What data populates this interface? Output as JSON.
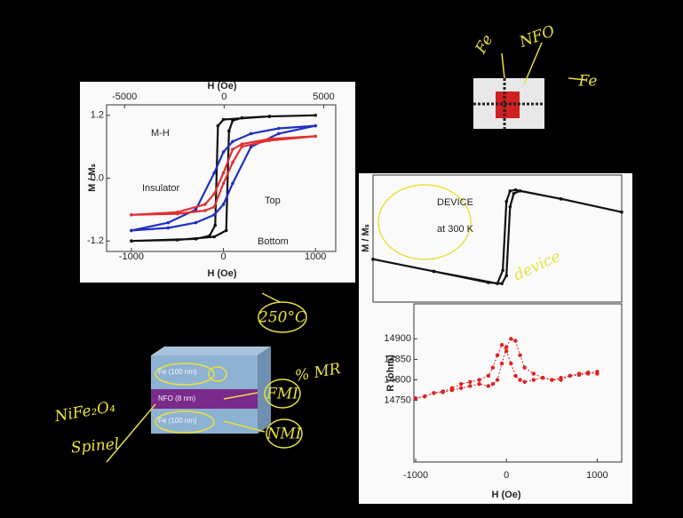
{
  "chart_data": [
    {
      "type": "line",
      "x2label": "H (Oe)",
      "xlabel": "H (Oe)",
      "ylabel": "M / Mₛ",
      "xlim": [
        -1270,
        1220
      ],
      "xticks": [
        -1000,
        0,
        1000
      ],
      "x2lim": [
        -5900,
        5600
      ],
      "x2ticks": [
        -5000,
        0,
        5000
      ],
      "ylim": [
        -1.4,
        1.4
      ],
      "yticks": [
        1.2,
        {
          "value": 0,
          "label": "0.0"
        },
        -1.2
      ],
      "annotations": [
        "M-H",
        "Insulator",
        "Top",
        "Bottom"
      ],
      "series": [
        {
          "color": "#111111",
          "x": [
            -1000,
            -500,
            -100,
            30,
            60,
            100,
            200,
            500,
            1000,
            500,
            0,
            -60,
            -90,
            -150,
            -300,
            -1000
          ],
          "values": [
            -1.2,
            -1.18,
            -1.12,
            -1.0,
            0.9,
            1.1,
            1.15,
            1.18,
            1.2,
            1.18,
            1.12,
            1.0,
            -0.9,
            -1.1,
            -1.16,
            -1.2
          ]
        },
        {
          "color": "#2030c0",
          "x": [
            -1000,
            -600,
            -300,
            -100,
            0,
            100,
            300,
            600,
            1000,
            600,
            300,
            100,
            0,
            -100,
            -300,
            -600,
            -1000
          ],
          "values": [
            -1.0,
            -0.95,
            -0.85,
            -0.7,
            -0.5,
            -0.1,
            0.6,
            0.85,
            1.0,
            0.95,
            0.85,
            0.7,
            0.5,
            0.1,
            -0.6,
            -0.85,
            -1.0
          ]
        },
        {
          "color": "#e03030",
          "x": [
            -1000,
            -500,
            -200,
            -100,
            0,
            100,
            200,
            500,
            1000,
            500,
            200,
            100,
            0,
            -100,
            -200,
            -500,
            -1000
          ],
          "values": [
            -0.7,
            -0.65,
            -0.5,
            -0.3,
            0.1,
            0.55,
            0.65,
            0.75,
            0.8,
            0.72,
            0.6,
            0.3,
            -0.1,
            -0.55,
            -0.62,
            -0.68,
            -0.7
          ]
        }
      ]
    },
    {
      "type": "line",
      "ylabel": "M / Mₛ",
      "xlim": [
        -1470,
        1270
      ],
      "ylim": [
        -1.2,
        1.2
      ],
      "annotations": [
        "DEVICE",
        "at 300 K"
      ],
      "series": [
        {
          "color": "#111111",
          "x": [
            -1470,
            -800,
            -200,
            -50,
            0,
            40,
            80,
            150,
            600,
            1270,
            600,
            100,
            40,
            0,
            -40,
            -100,
            -800,
            -1470
          ],
          "values": [
            -0.39,
            -0.62,
            -0.83,
            -0.85,
            -0.7,
            0.6,
            0.85,
            0.9,
            0.75,
            0.5,
            0.75,
            0.92,
            0.9,
            0.7,
            -0.6,
            -0.85,
            -0.62,
            -0.39
          ]
        }
      ]
    },
    {
      "type": "scatter",
      "xlabel": "H (Oe)",
      "ylabel": "R (ohm)",
      "xlim": [
        -1020,
        1270
      ],
      "xticks": [
        -1000,
        0,
        1000
      ],
      "ylim": [
        14600,
        14985
      ],
      "yticks": [
        14750,
        14800,
        14850,
        14900
      ],
      "series": [
        {
          "color": "#e02020",
          "x": [
            -1000,
            -900,
            -800,
            -700,
            -600,
            -500,
            -400,
            -300,
            -200,
            -150,
            -100,
            -50,
            0,
            50,
            100,
            150,
            200,
            300,
            400,
            500,
            600,
            700,
            800,
            900,
            1000
          ],
          "values": [
            14755,
            14760,
            14768,
            14772,
            14780,
            14790,
            14795,
            14800,
            14810,
            14830,
            14860,
            14885,
            14870,
            14840,
            14810,
            14800,
            14795,
            14800,
            14805,
            14800,
            14805,
            14810,
            14815,
            14818,
            14815
          ]
        },
        {
          "color": "#e02020",
          "x": [
            1000,
            900,
            800,
            700,
            600,
            500,
            400,
            300,
            200,
            150,
            100,
            50,
            0,
            -50,
            -100,
            -150,
            -200,
            -300,
            -400,
            -500,
            -600,
            -700,
            -800,
            -900,
            -1000
          ],
          "values": [
            14820,
            14815,
            14812,
            14810,
            14800,
            14800,
            14805,
            14815,
            14830,
            14860,
            14895,
            14900,
            14880,
            14840,
            14800,
            14790,
            14785,
            14790,
            14785,
            14780,
            14775,
            14770,
            14768,
            14760,
            14755
          ]
        }
      ]
    }
  ],
  "layers": [
    "Fe (100 nm)",
    "NFO (8 nm)",
    "Fe (100 nm)"
  ],
  "handwriting": [
    "Fe",
    "NFO",
    "Fe",
    "device",
    "250°C",
    "% MR",
    "FMI",
    "NMI",
    "NiFe₂O₄",
    "Spinel"
  ]
}
